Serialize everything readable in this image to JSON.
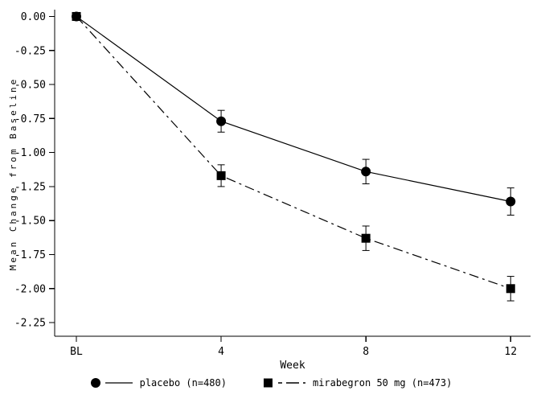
{
  "figure": {
    "background": "#ffffff",
    "line_color": "#000000"
  },
  "chart_data": {
    "type": "line",
    "title": "",
    "xlabel": "Week",
    "ylabel": "Mean Change from Baseline",
    "x_tick_labels": [
      "BL",
      "4",
      "8",
      "12"
    ],
    "x_values": [
      0,
      4,
      8,
      12
    ],
    "xlim": [
      -0.6,
      12.55
    ],
    "ylim": [
      -2.35,
      0.05
    ],
    "y_ticks": [
      0.0,
      -0.25,
      -0.5,
      -0.75,
      -1.0,
      -1.25,
      -1.5,
      -1.75,
      -2.0,
      -2.25
    ],
    "y_tick_labels": [
      "0.00",
      "-0.25",
      "-0.50",
      "-0.75",
      "-1.00",
      "-1.25",
      "-1.50",
      "-1.75",
      "-2.00",
      "-2.25"
    ],
    "grid": false,
    "legend_position": "bottom",
    "series": [
      {
        "name": "placebo (n=480)",
        "marker": "circle",
        "line_style": "solid",
        "color": "#000000",
        "values": [
          0.0,
          -0.77,
          -1.14,
          -1.36
        ],
        "error": [
          0.0,
          0.08,
          0.09,
          0.1
        ]
      },
      {
        "name": "mirabegron 50 mg (n=473)",
        "marker": "square",
        "line_style": "dash-dot",
        "color": "#000000",
        "values": [
          0.0,
          -1.17,
          -1.63,
          -2.0
        ],
        "error": [
          0.0,
          0.08,
          0.09,
          0.09
        ]
      }
    ]
  }
}
